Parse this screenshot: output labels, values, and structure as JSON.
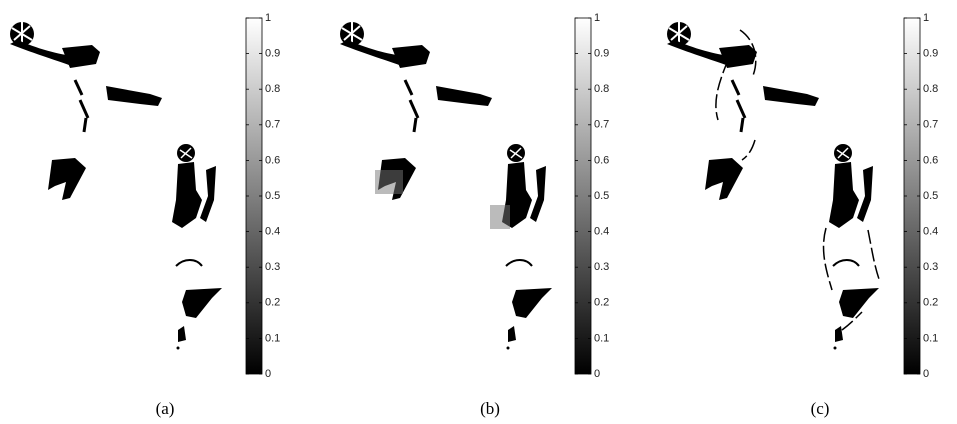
{
  "panels": [
    {
      "label": "(a)",
      "colorbar": {
        "lim": [
          0,
          1
        ],
        "ticks": [
          0,
          0.1,
          0.2,
          0.3,
          0.4,
          0.5,
          0.6,
          0.7,
          0.8,
          0.9,
          1
        ]
      }
    },
    {
      "label": "(b)",
      "colorbar": {
        "lim": [
          0,
          1
        ],
        "ticks": [
          0,
          0.1,
          0.2,
          0.3,
          0.4,
          0.5,
          0.6,
          0.7,
          0.8,
          0.9,
          1
        ]
      }
    },
    {
      "label": "(c)",
      "colorbar": {
        "lim": [
          0,
          1
        ],
        "ticks": [
          0,
          0.1,
          0.2,
          0.3,
          0.4,
          0.5,
          0.6,
          0.7,
          0.8,
          0.9,
          1
        ]
      }
    }
  ]
}
